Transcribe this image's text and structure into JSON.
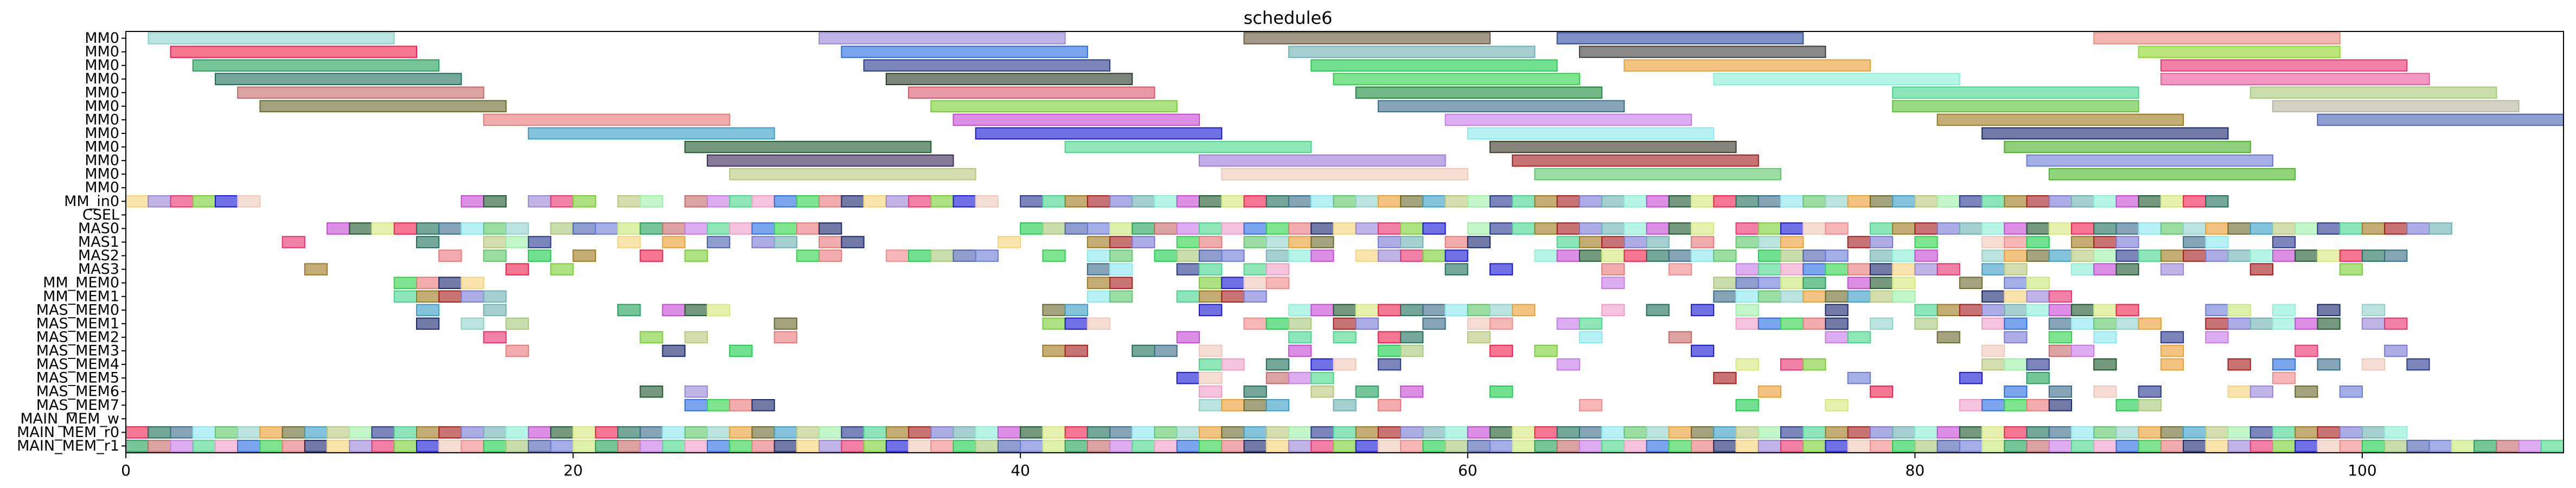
{
  "chart_data": {
    "type": "gantt",
    "title": "schedule6",
    "xlabel": "",
    "ylabel": "",
    "xlim": [
      0,
      109
    ],
    "xticks": [
      0,
      20,
      40,
      60,
      80,
      100
    ],
    "grid": false,
    "rows": [
      "MM0",
      "MM0",
      "MM0",
      "MM0",
      "MM0",
      "MM0",
      "MM0",
      "MM0",
      "MM0",
      "MM0",
      "MM0",
      "MM0",
      "MM_in0",
      "CSEL",
      "MAS0",
      "MAS1",
      "MAS2",
      "MAS3",
      "MM_MEM0",
      "MM_MEM1",
      "MAS_MEM0",
      "MAS_MEM1",
      "MAS_MEM2",
      "MAS_MEM3",
      "MAS_MEM4",
      "MAS_MEM5",
      "MAS_MEM6",
      "MAS_MEM7",
      "MAIN_MEM_w",
      "MAIN_MEM_r0",
      "MAIN_MEM_r1"
    ],
    "mm_tasks": [
      {
        "row": 0,
        "start": 1,
        "end": 12,
        "color": "#8fd3c8"
      },
      {
        "row": 0,
        "start": 31,
        "end": 42,
        "color": "#9b86d6"
      },
      {
        "row": 0,
        "start": 50,
        "end": 61,
        "color": "#6b5a3e"
      },
      {
        "row": 0,
        "start": 64,
        "end": 75,
        "color": "#2e4a9e"
      },
      {
        "row": 0,
        "start": 88,
        "end": 99,
        "color": "#e88a7e"
      },
      {
        "row": 1,
        "start": 2,
        "end": 13,
        "color": "#f0244e"
      },
      {
        "row": 1,
        "start": 32,
        "end": 43,
        "color": "#2a6ee0"
      },
      {
        "row": 1,
        "start": 52,
        "end": 63,
        "color": "#6fb3b3"
      },
      {
        "row": 1,
        "start": 65,
        "end": 76,
        "color": "#3f3f3f"
      },
      {
        "row": 1,
        "start": 90,
        "end": 99,
        "color": "#8fd82a"
      },
      {
        "row": 2,
        "start": 3,
        "end": 14,
        "color": "#23a35a"
      },
      {
        "row": 2,
        "start": 33,
        "end": 44,
        "color": "#2b3a8f"
      },
      {
        "row": 2,
        "start": 53,
        "end": 64,
        "color": "#1fce4f"
      },
      {
        "row": 2,
        "start": 67,
        "end": 78,
        "color": "#eca033"
      },
      {
        "row": 2,
        "start": 91,
        "end": 102,
        "color": "#e83470"
      },
      {
        "row": 3,
        "start": 4,
        "end": 15,
        "color": "#1f6f5a"
      },
      {
        "row": 3,
        "start": 34,
        "end": 45,
        "color": "#2a3a2a"
      },
      {
        "row": 3,
        "start": 54,
        "end": 65,
        "color": "#31d34a"
      },
      {
        "row": 3,
        "start": 71,
        "end": 82,
        "color": "#8af0d6"
      },
      {
        "row": 3,
        "start": 91,
        "end": 103,
        "color": "#ec5a9a"
      },
      {
        "row": 4,
        "start": 5,
        "end": 16,
        "color": "#c76a6a"
      },
      {
        "row": 4,
        "start": 35,
        "end": 46,
        "color": "#d65a6e"
      },
      {
        "row": 4,
        "start": 55,
        "end": 66,
        "color": "#1c8a3a"
      },
      {
        "row": 4,
        "start": 79,
        "end": 90,
        "color": "#47d68f"
      },
      {
        "row": 4,
        "start": 95,
        "end": 106,
        "color": "#a8c87a"
      },
      {
        "row": 5,
        "start": 6,
        "end": 17,
        "color": "#6b6a2e"
      },
      {
        "row": 5,
        "start": 36,
        "end": 47,
        "color": "#7ace36"
      },
      {
        "row": 5,
        "start": 56,
        "end": 67,
        "color": "#3a6e8a"
      },
      {
        "row": 5,
        "start": 79,
        "end": 90,
        "color": "#5ec43a"
      },
      {
        "row": 5,
        "start": 96,
        "end": 107,
        "color": "#b8b8a0"
      },
      {
        "row": 6,
        "start": 16,
        "end": 27,
        "color": "#e87a7a"
      },
      {
        "row": 6,
        "start": 37,
        "end": 48,
        "color": "#c84ad6"
      },
      {
        "row": 6,
        "start": 59,
        "end": 70,
        "color": "#c87ae8"
      },
      {
        "row": 6,
        "start": 81,
        "end": 92,
        "color": "#9e7a1e"
      },
      {
        "row": 6,
        "start": 98,
        "end": 109,
        "color": "#4a62b0"
      },
      {
        "row": 7,
        "start": 18,
        "end": 29,
        "color": "#3a9ec8"
      },
      {
        "row": 7,
        "start": 38,
        "end": 49,
        "color": "#1a1ad6"
      },
      {
        "row": 7,
        "start": 60,
        "end": 71,
        "color": "#8ae8f0"
      },
      {
        "row": 7,
        "start": 83,
        "end": 94,
        "color": "#1a2a6e"
      },
      {
        "row": 8,
        "start": 25,
        "end": 36,
        "color": "#1e5a2e"
      },
      {
        "row": 8,
        "start": 42,
        "end": 53,
        "color": "#4ad68a"
      },
      {
        "row": 8,
        "start": 61,
        "end": 72,
        "color": "#3a3a2a"
      },
      {
        "row": 8,
        "start": 84,
        "end": 95,
        "color": "#4ab02a"
      },
      {
        "row": 9,
        "start": 26,
        "end": 37,
        "color": "#3a2a5a"
      },
      {
        "row": 9,
        "start": 48,
        "end": 59,
        "color": "#9e7ad6"
      },
      {
        "row": 9,
        "start": 62,
        "end": 73,
        "color": "#a81e1e"
      },
      {
        "row": 9,
        "start": 85,
        "end": 96,
        "color": "#6a7ad6"
      },
      {
        "row": 10,
        "start": 27,
        "end": 38,
        "color": "#b8c87a"
      },
      {
        "row": 10,
        "start": 49,
        "end": 60,
        "color": "#f0c8b8"
      },
      {
        "row": 10,
        "start": 63,
        "end": 74,
        "color": "#5ec86a"
      },
      {
        "row": 10,
        "start": 86,
        "end": 97,
        "color": "#4ab82a"
      }
    ],
    "unit_rows": [
      {
        "row": 12,
        "starts": [
          0,
          1,
          2,
          3,
          4,
          5,
          15,
          16,
          18,
          19,
          20,
          22,
          23,
          25,
          26,
          27,
          28,
          29,
          30,
          31,
          32,
          33,
          34,
          35,
          36,
          37,
          38,
          40,
          41,
          42,
          43,
          44,
          45,
          46,
          47,
          48,
          49,
          50,
          51,
          52,
          53,
          54,
          55,
          56,
          57,
          58,
          59,
          60,
          61,
          62,
          63,
          64,
          65,
          66,
          67,
          68,
          69,
          70,
          71,
          72,
          73,
          74,
          75,
          76,
          77,
          78,
          79,
          80,
          81,
          82,
          83,
          84,
          85,
          86,
          87,
          88,
          89,
          90,
          91,
          92,
          93
        ]
      },
      {
        "row": 14,
        "starts": [
          9,
          10,
          11,
          12,
          13,
          14,
          15,
          16,
          17,
          19,
          20,
          21,
          22,
          23,
          24,
          25,
          26,
          27,
          28,
          29,
          30,
          31,
          40,
          41,
          42,
          43,
          44,
          45,
          46,
          47,
          48,
          49,
          50,
          51,
          52,
          53,
          54,
          55,
          56,
          57,
          58,
          60,
          61,
          62,
          63,
          64,
          65,
          66,
          67,
          68,
          69,
          70,
          72,
          73,
          74,
          75,
          76,
          78,
          79,
          80,
          81,
          82,
          83,
          84,
          85,
          86,
          87,
          88,
          89,
          90,
          91,
          92,
          93,
          94,
          95,
          96,
          97,
          98,
          99,
          100,
          101,
          102,
          103
        ]
      },
      {
        "row": 15,
        "starts": [
          7,
          13,
          16,
          17,
          18,
          22,
          24,
          26,
          28,
          29,
          31,
          32,
          39,
          43,
          44,
          45,
          47,
          48,
          50,
          51,
          52,
          53,
          56,
          57,
          59,
          60,
          64,
          65,
          66,
          67,
          68,
          70,
          72,
          73,
          74,
          77,
          78,
          80,
          83,
          84,
          85,
          87,
          88,
          89,
          92,
          93,
          96
        ]
      },
      {
        "row": 16,
        "starts": [
          14,
          16,
          18,
          20,
          23,
          25,
          30,
          31,
          34,
          35,
          36,
          37,
          38,
          41,
          43,
          44,
          46,
          47,
          48,
          49,
          51,
          52,
          53,
          55,
          56,
          57,
          58,
          59,
          63,
          64,
          65,
          66,
          67,
          68,
          69,
          70,
          71,
          73,
          74,
          75,
          76,
          78,
          79,
          80,
          83,
          84,
          85,
          86,
          87,
          88,
          89,
          90,
          91,
          92,
          93,
          94,
          95,
          96,
          97,
          98,
          99,
          100,
          101
        ]
      },
      {
        "row": 17,
        "starts": [
          8,
          17,
          19,
          43,
          44,
          47,
          48,
          50,
          51,
          59,
          61,
          66,
          69,
          72,
          73,
          74,
          75,
          76,
          77,
          78,
          79,
          80,
          81,
          83,
          84,
          87,
          88,
          89,
          91,
          95,
          99
        ]
      },
      {
        "row": 18,
        "starts": [
          12,
          13,
          14,
          15,
          43,
          44,
          48,
          49,
          50,
          51,
          66,
          71,
          72,
          73,
          74,
          75,
          77,
          78,
          79,
          82,
          84,
          85
        ]
      },
      {
        "row": 19,
        "starts": [
          12,
          13,
          14,
          15,
          16,
          43,
          44,
          47,
          48,
          49,
          50,
          71,
          72,
          73,
          74,
          75,
          76,
          77,
          78,
          79,
          83,
          84,
          85,
          86
        ]
      },
      {
        "row": 20,
        "starts": [
          13,
          16,
          22,
          24,
          25,
          26,
          41,
          42,
          48,
          52,
          53,
          54,
          55,
          56,
          57,
          58,
          59,
          60,
          61,
          62,
          66,
          68,
          70,
          72,
          76,
          80,
          81,
          82,
          83,
          84,
          85,
          86,
          87,
          88,
          89,
          93,
          94,
          96,
          98,
          100
        ]
      },
      {
        "row": 21,
        "starts": [
          13,
          15,
          17,
          29,
          41,
          42,
          43,
          50,
          51,
          52,
          54,
          55,
          58,
          60,
          61,
          64,
          65,
          72,
          73,
          74,
          75,
          76,
          78,
          80,
          83,
          84,
          86,
          87,
          88,
          89,
          90,
          93,
          94,
          95,
          96,
          97,
          98,
          100,
          101
        ]
      },
      {
        "row": 22,
        "starts": [
          16,
          23,
          25,
          29,
          47,
          52,
          54,
          56,
          57,
          60,
          65,
          69,
          76,
          77,
          81,
          84,
          86,
          88,
          91,
          93
        ]
      },
      {
        "row": 23,
        "starts": [
          17,
          24,
          27,
          41,
          42,
          45,
          46,
          48,
          52,
          56,
          57,
          61,
          63,
          70,
          83,
          86,
          87,
          91,
          97,
          101
        ]
      },
      {
        "row": 24,
        "starts": [
          48,
          49,
          51,
          53,
          54,
          56,
          64,
          72,
          74,
          75,
          83,
          84,
          85,
          88,
          91,
          94,
          96,
          98,
          100,
          102
        ]
      },
      {
        "row": 25,
        "starts": [
          47,
          48,
          51,
          52,
          53,
          71,
          77,
          82,
          85,
          96
        ]
      },
      {
        "row": 26,
        "starts": [
          23,
          25,
          48,
          50,
          53,
          55,
          57,
          61,
          73,
          78,
          84,
          86,
          88,
          90,
          94,
          95,
          97,
          99
        ]
      },
      {
        "row": 27,
        "starts": [
          25,
          26,
          27,
          28,
          48,
          49,
          50,
          51,
          54,
          56,
          65,
          72,
          76,
          82,
          83,
          84,
          85,
          86,
          89,
          90
        ]
      },
      {
        "row": 29,
        "starts": [
          0,
          1,
          2,
          3,
          4,
          5,
          6,
          7,
          8,
          9,
          10,
          11,
          12,
          13,
          14,
          15,
          16,
          17,
          18,
          19,
          20,
          21,
          22,
          23,
          24,
          25,
          26,
          27,
          28,
          29,
          30,
          31,
          32,
          33,
          34,
          35,
          36,
          37,
          38,
          39,
          40,
          41,
          42,
          43,
          44,
          45,
          46,
          47,
          48,
          49,
          50,
          51,
          52,
          53,
          54,
          55,
          56,
          57,
          58,
          59,
          60,
          61,
          62,
          63,
          64,
          65,
          66,
          67,
          68,
          69,
          70,
          71,
          72,
          73,
          74,
          75,
          76,
          77,
          78,
          79,
          80,
          81,
          82,
          83,
          84,
          85,
          86,
          87,
          88,
          89,
          90,
          91,
          92,
          93,
          94,
          95,
          96,
          97,
          98,
          99,
          100,
          101
        ]
      },
      {
        "row": 30,
        "starts": [
          0,
          1,
          2,
          3,
          4,
          5,
          6,
          7,
          8,
          9,
          10,
          11,
          12,
          13,
          14,
          15,
          16,
          17,
          18,
          19,
          20,
          21,
          22,
          23,
          24,
          25,
          26,
          27,
          28,
          29,
          30,
          31,
          32,
          33,
          34,
          35,
          36,
          37,
          38,
          39,
          40,
          41,
          42,
          43,
          44,
          45,
          46,
          47,
          48,
          49,
          50,
          51,
          52,
          53,
          54,
          55,
          56,
          57,
          58,
          59,
          60,
          61,
          62,
          63,
          64,
          65,
          66,
          67,
          68,
          69,
          70,
          71,
          72,
          73,
          74,
          75,
          76,
          77,
          78,
          79,
          80,
          81,
          82,
          83,
          84,
          85,
          86,
          87,
          88,
          89,
          90,
          91,
          92,
          93,
          94,
          95,
          96,
          97,
          98,
          99,
          100,
          101,
          102,
          103,
          104,
          105,
          106,
          107,
          108
        ]
      }
    ],
    "palette": [
      "#f28b8b",
      "#8fd3c8",
      "#9b86d6",
      "#f0244e",
      "#2a6ee0",
      "#6fb3b3",
      "#23a35a",
      "#2b3a8f",
      "#1fce4f",
      "#eca033",
      "#e83470",
      "#1f6f5a",
      "#31d34a",
      "#8af0d6",
      "#c76a6a",
      "#47d68f",
      "#a8c87a",
      "#6b6a2e",
      "#7ace36",
      "#3a6e8a",
      "#e87a7a",
      "#c84ad6",
      "#c87ae8",
      "#9e7a1e",
      "#4a62b0",
      "#3a9ec8",
      "#1a1ad6",
      "#8ae8f0",
      "#1a2a6e",
      "#1e5a2e",
      "#4ad68a",
      "#a81e1e",
      "#6a7ad6",
      "#b8c87a",
      "#f0c8b8",
      "#5ec86a",
      "#f5d47a",
      "#d6e87a",
      "#f09ec8",
      "#7a7ad6",
      "#c8e87a",
      "#9ef0a8"
    ]
  }
}
